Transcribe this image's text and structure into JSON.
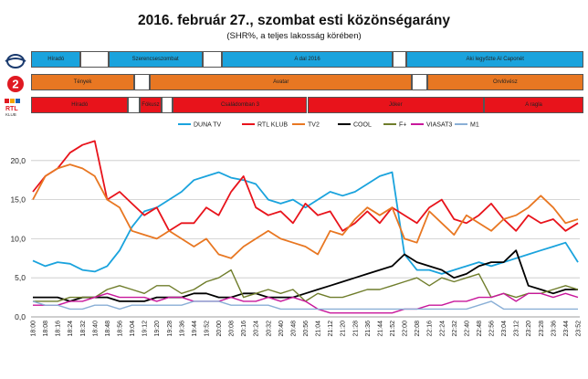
{
  "title": "2016. február 27., szombat esti közönségarány",
  "subtitle": "(SHR%, a teljes lakosság körében)",
  "logos": {
    "rtl_text": "RTL",
    "rtl_sub": "KLUB",
    "tv2_text": "2"
  },
  "program_bands": [
    {
      "channel": "DUNA TV",
      "color": "#1AA3DD",
      "segments": [
        {
          "label": "Híradó",
          "start": 0.0,
          "end": 0.09
        },
        {
          "label": "",
          "start": 0.09,
          "end": 0.14
        },
        {
          "label": "Szerencseszombat",
          "start": 0.14,
          "end": 0.31
        },
        {
          "label": "",
          "start": 0.31,
          "end": 0.345
        },
        {
          "label": "A dal 2016",
          "start": 0.345,
          "end": 0.655
        },
        {
          "label": "",
          "start": 0.655,
          "end": 0.68
        },
        {
          "label": "Aki legyőzte Al Caponét",
          "start": 0.68,
          "end": 1.0
        }
      ]
    },
    {
      "channel": "TV2",
      "color": "#E87722",
      "segments": [
        {
          "label": "Tények",
          "start": 0.0,
          "end": 0.187
        },
        {
          "label": "",
          "start": 0.187,
          "end": 0.215
        },
        {
          "label": "Avatar",
          "start": 0.215,
          "end": 0.69
        },
        {
          "label": "",
          "start": 0.69,
          "end": 0.717
        },
        {
          "label": "Orvlövész",
          "start": 0.717,
          "end": 1.0
        }
      ]
    },
    {
      "channel": "RTL KLUB",
      "color": "#E8131B",
      "segments": [
        {
          "label": "Híradó",
          "start": 0.0,
          "end": 0.176
        },
        {
          "label": "",
          "start": 0.176,
          "end": 0.196
        },
        {
          "label": "Fókusz",
          "start": 0.196,
          "end": 0.237
        },
        {
          "label": "",
          "start": 0.237,
          "end": 0.257
        },
        {
          "label": "Családomban 3",
          "start": 0.257,
          "end": 0.5
        },
        {
          "label": "Jóker",
          "start": 0.5,
          "end": 0.82
        },
        {
          "label": "A ragla",
          "start": 0.82,
          "end": 1.0
        }
      ]
    }
  ],
  "chart_data": {
    "type": "line",
    "title": "2016. február 27., szombat esti közönségarány",
    "subtitle": "(SHR%, a teljes lakosság körében)",
    "ylim": [
      0,
      25
    ],
    "yticks": [
      "0,0",
      "5,0",
      "10,0",
      "15,0",
      "20,0"
    ],
    "grid": true,
    "legend_position": "top-right",
    "x": [
      "18:00",
      "18:08",
      "18:16",
      "18:24",
      "18:32",
      "18:40",
      "18:48",
      "18:56",
      "19:04",
      "19:12",
      "19:20",
      "19:28",
      "19:36",
      "19:44",
      "19:52",
      "20:00",
      "20:08",
      "20:16",
      "20:24",
      "20:32",
      "20:40",
      "20:48",
      "20:56",
      "21:04",
      "21:12",
      "21:20",
      "21:28",
      "21:36",
      "21:44",
      "21:52",
      "22:00",
      "22:08",
      "22:16",
      "22:24",
      "22:32",
      "22:40",
      "22:48",
      "22:56",
      "23:04",
      "23:12",
      "23:20",
      "23:28",
      "23:36",
      "23:44",
      "23:52"
    ],
    "series": [
      {
        "name": "DUNA TV",
        "color": "#1AA3DD",
        "values": [
          7.2,
          6.5,
          7,
          6.8,
          6,
          5.8,
          6.5,
          8.5,
          11.5,
          13.5,
          14,
          15,
          16,
          17.5,
          18,
          18.5,
          17.8,
          17.5,
          17,
          15,
          14.5,
          15,
          14,
          15,
          16,
          15.5,
          16,
          17,
          18,
          18.5,
          8,
          6,
          6,
          5.5,
          6,
          6.5,
          7,
          6.5,
          7,
          7.5,
          8,
          8.5,
          9,
          9.5,
          7
        ]
      },
      {
        "name": "RTL KLUB",
        "color": "#E8131B",
        "values": [
          16,
          18,
          19,
          21,
          22,
          22.5,
          15,
          16,
          14.5,
          13,
          14,
          11,
          12,
          12,
          14,
          13,
          16,
          18,
          14,
          13,
          13.5,
          12,
          14.5,
          13,
          13.5,
          11,
          12,
          13.5,
          12,
          14,
          13,
          12,
          14,
          15,
          12.5,
          12,
          13,
          14.5,
          12.5,
          11,
          13,
          12,
          12.5,
          11,
          12
        ]
      },
      {
        "name": "TV2",
        "color": "#E87722",
        "values": [
          15,
          18,
          19,
          19.5,
          19,
          18,
          15,
          14,
          11,
          10.5,
          10,
          11,
          10,
          9,
          10,
          8,
          7.5,
          9,
          10,
          11,
          10,
          9.5,
          9,
          8,
          11,
          10.5,
          12.5,
          14,
          13,
          14,
          10,
          9.5,
          13.5,
          12,
          10.5,
          13,
          12,
          11,
          12.5,
          13,
          14,
          15.5,
          14,
          12,
          12.5
        ]
      },
      {
        "name": "COOL",
        "color": "#000000",
        "values": [
          2.5,
          2.5,
          2.5,
          2,
          2.5,
          2.5,
          2.5,
          2,
          2,
          2,
          2.5,
          2.5,
          2.5,
          3,
          3,
          2.5,
          2.5,
          3,
          3,
          2.5,
          2.5,
          2.5,
          3,
          3.5,
          4,
          4.5,
          5,
          5.5,
          6,
          6.5,
          8,
          7,
          6.5,
          6,
          5,
          5.5,
          6.5,
          7,
          7,
          8.5,
          4,
          3.5,
          3,
          3.5,
          3.5
        ]
      },
      {
        "name": "F+",
        "color": "#6F7D2B",
        "values": [
          2,
          2,
          2,
          2.5,
          2.5,
          2.5,
          3.5,
          4,
          3.5,
          3,
          4,
          4,
          3,
          3.5,
          4.5,
          5,
          6,
          2.5,
          3,
          3.5,
          3,
          3.5,
          2,
          3,
          2.5,
          2.5,
          3,
          3.5,
          3.5,
          4,
          4.5,
          5,
          4,
          5,
          4.5,
          5,
          5.5,
          2.5,
          3,
          2.5,
          3,
          3,
          3.5,
          4,
          3.5
        ]
      },
      {
        "name": "VIASAT3",
        "color": "#C8179B",
        "values": [
          1.5,
          1.5,
          1.5,
          2,
          2,
          2.5,
          3,
          2.5,
          2.5,
          2.5,
          2,
          2.5,
          2.5,
          2,
          2,
          2,
          2.5,
          2,
          2,
          2.5,
          2,
          2.5,
          2,
          1,
          0.5,
          0.5,
          0.5,
          0.5,
          0.5,
          0.5,
          1,
          1,
          1.5,
          1.5,
          2,
          2,
          2.5,
          2.5,
          3,
          2,
          3,
          3,
          2.5,
          3,
          2.5
        ]
      },
      {
        "name": "M1",
        "color": "#8AAFD6",
        "values": [
          2,
          1.5,
          1.5,
          1,
          1,
          1.5,
          1.5,
          1,
          1.5,
          1.5,
          1.5,
          1.5,
          1.5,
          2,
          2,
          2,
          1.5,
          1.5,
          1.5,
          1.5,
          1,
          1,
          1,
          1,
          1,
          1,
          1,
          1,
          1,
          1,
          1,
          1,
          1,
          1,
          1,
          1,
          1.5,
          2,
          1,
          1,
          1,
          1,
          1,
          1,
          1
        ]
      }
    ]
  }
}
